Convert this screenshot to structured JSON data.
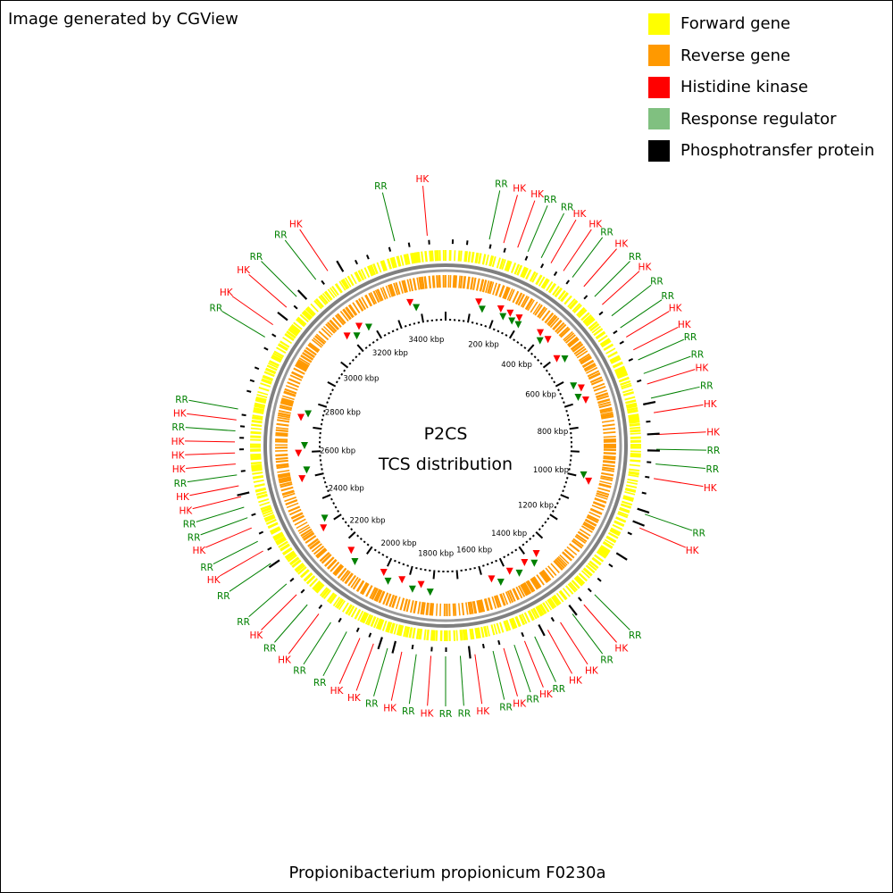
{
  "header": {
    "credit": "Image generated by CGView"
  },
  "legend": [
    {
      "label": "Forward gene",
      "color": "#ffff00"
    },
    {
      "label": "Reverse gene",
      "color": "#ff9900"
    },
    {
      "label": "Histidine kinase",
      "color": "#ff0000"
    },
    {
      "label": "Response regulator",
      "color": "#80c080"
    },
    {
      "label": "Phosphotransfer protein",
      "color": "#000000"
    }
  ],
  "map": {
    "center_title": "P2CS",
    "center_subtitle": "TCS distribution",
    "genome_length_kbp": 3500,
    "scale_labels": [
      "200 kbp",
      "400 kbp",
      "600 kbp",
      "800 kbp",
      "1000 kbp",
      "1200 kbp",
      "1400 kbp",
      "1600 kbp",
      "1800 kbp",
      "2000 kbp",
      "2200 kbp",
      "2400 kbp",
      "2600 kbp",
      "2800 kbp",
      "3000 kbp",
      "3200 kbp",
      "3400 kbp"
    ],
    "feature_colors": {
      "forward": "#ffff00",
      "reverse": "#ff9900",
      "HK": "#ff0000",
      "RR": "#008000",
      "HK_marker": "#ff0000",
      "RR_marker": "#008000"
    },
    "outer_labels": [
      {
        "text": "RR",
        "type": "RR",
        "angle": 346
      },
      {
        "text": "HK",
        "type": "HK",
        "angle": 355
      },
      {
        "text": "RR",
        "type": "RR",
        "angle": 12
      },
      {
        "text": "HK",
        "type": "HK",
        "angle": 16
      },
      {
        "text": "HK",
        "type": "HK",
        "angle": 20
      },
      {
        "text": "RR",
        "type": "RR",
        "angle": 23
      },
      {
        "text": "RR",
        "type": "RR",
        "angle": 27
      },
      {
        "text": "HK",
        "type": "HK",
        "angle": 30
      },
      {
        "text": "HK",
        "type": "HK",
        "angle": 34
      },
      {
        "text": "RR",
        "type": "RR",
        "angle": 37
      },
      {
        "text": "HK",
        "type": "HK",
        "angle": 41
      },
      {
        "text": "RR",
        "type": "RR",
        "angle": 45
      },
      {
        "text": "HK",
        "type": "HK",
        "angle": 48
      },
      {
        "text": "RR",
        "type": "RR",
        "angle": 52
      },
      {
        "text": "RR",
        "type": "RR",
        "angle": 56
      },
      {
        "text": "HK",
        "type": "HK",
        "angle": 59
      },
      {
        "text": "HK",
        "type": "HK",
        "angle": 63
      },
      {
        "text": "RR",
        "type": "RR",
        "angle": 66
      },
      {
        "text": "RR",
        "type": "RR",
        "angle": 70
      },
      {
        "text": "HK",
        "type": "HK",
        "angle": 73
      },
      {
        "text": "RR",
        "type": "RR",
        "angle": 77
      },
      {
        "text": "HK",
        "type": "HK",
        "angle": 81
      },
      {
        "text": "HK",
        "type": "HK",
        "angle": 87
      },
      {
        "text": "RR",
        "type": "RR",
        "angle": 91
      },
      {
        "text": "RR",
        "type": "RR",
        "angle": 95
      },
      {
        "text": "HK",
        "type": "HK",
        "angle": 99
      },
      {
        "text": "RR",
        "type": "RR",
        "angle": 109
      },
      {
        "text": "HK",
        "type": "HK",
        "angle": 113
      },
      {
        "text": "RR",
        "type": "RR",
        "angle": 135
      },
      {
        "text": "HK",
        "type": "HK",
        "angle": 139
      },
      {
        "text": "RR",
        "type": "RR",
        "angle": 143
      },
      {
        "text": "HK",
        "type": "HK",
        "angle": 147
      },
      {
        "text": "HK",
        "type": "HK",
        "angle": 151
      },
      {
        "text": "RR",
        "type": "RR",
        "angle": 155
      },
      {
        "text": "HK",
        "type": "HK",
        "angle": 158
      },
      {
        "text": "RR",
        "type": "RR",
        "angle": 161
      },
      {
        "text": "HK",
        "type": "HK",
        "angle": 164
      },
      {
        "text": "RR",
        "type": "RR",
        "angle": 167
      },
      {
        "text": "HK",
        "type": "HK",
        "angle": 172
      },
      {
        "text": "RR",
        "type": "RR",
        "angle": 176
      },
      {
        "text": "RR",
        "type": "RR",
        "angle": 180
      },
      {
        "text": "HK",
        "type": "HK",
        "angle": 184
      },
      {
        "text": "RR",
        "type": "RR",
        "angle": 188
      },
      {
        "text": "HK",
        "type": "HK",
        "angle": 192
      },
      {
        "text": "RR",
        "type": "RR",
        "angle": 196
      },
      {
        "text": "HK",
        "type": "HK",
        "angle": 200
      },
      {
        "text": "HK",
        "type": "HK",
        "angle": 204
      },
      {
        "text": "RR",
        "type": "RR",
        "angle": 208
      },
      {
        "text": "RR",
        "type": "RR",
        "angle": 213
      },
      {
        "text": "HK",
        "type": "HK",
        "angle": 217
      },
      {
        "text": "RR",
        "type": "RR",
        "angle": 221
      },
      {
        "text": "HK",
        "type": "HK",
        "angle": 225
      },
      {
        "text": "RR",
        "type": "RR",
        "angle": 229
      },
      {
        "text": "RR",
        "type": "RR",
        "angle": 236
      },
      {
        "text": "HK",
        "type": "HK",
        "angle": 240
      },
      {
        "text": "RR",
        "type": "RR",
        "angle": 243
      },
      {
        "text": "HK",
        "type": "HK",
        "angle": 247
      },
      {
        "text": "RR",
        "type": "RR",
        "angle": 250
      },
      {
        "text": "RR",
        "type": "RR",
        "angle": 253
      },
      {
        "text": "HK",
        "type": "HK",
        "angle": 256
      },
      {
        "text": "HK",
        "type": "HK",
        "angle": 259
      },
      {
        "text": "RR",
        "type": "RR",
        "angle": 262
      },
      {
        "text": "HK",
        "type": "HK",
        "angle": 265
      },
      {
        "text": "HK",
        "type": "HK",
        "angle": 268
      },
      {
        "text": "HK",
        "type": "HK",
        "angle": 271
      },
      {
        "text": "RR",
        "type": "RR",
        "angle": 274
      },
      {
        "text": "HK",
        "type": "HK",
        "angle": 277
      },
      {
        "text": "RR",
        "type": "RR",
        "angle": 280
      },
      {
        "text": "RR",
        "type": "RR",
        "angle": 301
      },
      {
        "text": "HK",
        "type": "HK",
        "angle": 305
      },
      {
        "text": "HK",
        "type": "HK",
        "angle": 311
      },
      {
        "text": "RR",
        "type": "RR",
        "angle": 315
      },
      {
        "text": "RR",
        "type": "RR",
        "angle": 322
      },
      {
        "text": "HK",
        "type": "HK",
        "angle": 326
      }
    ],
    "inner_markers": [
      {
        "type": "HK",
        "angle": 346
      },
      {
        "type": "RR",
        "angle": 348
      },
      {
        "type": "HK",
        "angle": 13
      },
      {
        "type": "RR",
        "angle": 15
      },
      {
        "type": "HK",
        "angle": 22
      },
      {
        "type": "RR",
        "angle": 24
      },
      {
        "type": "HK",
        "angle": 26
      },
      {
        "type": "RR",
        "angle": 28
      },
      {
        "type": "HK",
        "angle": 30
      },
      {
        "type": "RR",
        "angle": 31
      },
      {
        "type": "HK",
        "angle": 40
      },
      {
        "type": "RR",
        "angle": 42
      },
      {
        "type": "HK",
        "angle": 44
      },
      {
        "type": "HK",
        "angle": 52
      },
      {
        "type": "RR",
        "angle": 54
      },
      {
        "type": "RR",
        "angle": 65
      },
      {
        "type": "HK",
        "angle": 67
      },
      {
        "type": "RR",
        "angle": 70
      },
      {
        "type": "HK",
        "angle": 72
      },
      {
        "type": "RR",
        "angle": 102
      },
      {
        "type": "HK",
        "angle": 104
      },
      {
        "type": "HK",
        "angle": 140
      },
      {
        "type": "RR",
        "angle": 143
      },
      {
        "type": "HK",
        "angle": 146
      },
      {
        "type": "RR",
        "angle": 150
      },
      {
        "type": "HK",
        "angle": 153
      },
      {
        "type": "RR",
        "angle": 158
      },
      {
        "type": "HK",
        "angle": 161
      },
      {
        "type": "RR",
        "angle": 186
      },
      {
        "type": "HK",
        "angle": 190
      },
      {
        "type": "RR",
        "angle": 193
      },
      {
        "type": "HK",
        "angle": 198
      },
      {
        "type": "RR",
        "angle": 203
      },
      {
        "type": "HK",
        "angle": 206
      },
      {
        "type": "RR",
        "angle": 218
      },
      {
        "type": "HK",
        "angle": 222
      },
      {
        "type": "HK",
        "angle": 236
      },
      {
        "type": "RR",
        "angle": 239
      },
      {
        "type": "HK",
        "angle": 257
      },
      {
        "type": "RR",
        "angle": 260
      },
      {
        "type": "HK",
        "angle": 267
      },
      {
        "type": "RR",
        "angle": 270
      },
      {
        "type": "HK",
        "angle": 281
      },
      {
        "type": "RR",
        "angle": 283
      },
      {
        "type": "HK",
        "angle": 318
      },
      {
        "type": "RR",
        "angle": 321
      },
      {
        "type": "HK",
        "angle": 324
      },
      {
        "type": "RR",
        "angle": 327
      }
    ]
  },
  "footer": {
    "organism": "Propionibacterium propionicum F0230a"
  }
}
